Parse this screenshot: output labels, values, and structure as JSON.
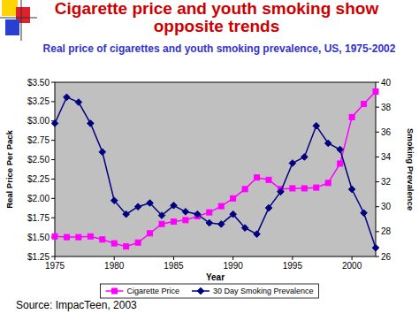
{
  "chart_data": {
    "type": "line",
    "title": "Cigarette price and youth smoking show opposite trends",
    "subtitle": "Real price of cigarettes and youth smoking prevalence, US, 1975-2002",
    "x_label": "Year",
    "y_label": "Real Price Per Pack",
    "y2_label": "Smoking Prevalence",
    "source": "Source: ImpacTeen, 2003",
    "x": [
      1975,
      1976,
      1977,
      1978,
      1979,
      1980,
      1981,
      1982,
      1983,
      1984,
      1985,
      1986,
      1987,
      1988,
      1989,
      1990,
      1991,
      1992,
      1993,
      1994,
      1995,
      1996,
      1997,
      1998,
      1999,
      2000,
      2001,
      2002
    ],
    "xlim": [
      1975,
      2002
    ],
    "xticks": [
      1975,
      1980,
      1985,
      1990,
      1995,
      2000
    ],
    "ylim": [
      1.25,
      3.5
    ],
    "yticks": [
      {
        "value": 1.25,
        "label": "$1.25"
      },
      {
        "value": 1.5,
        "label": "$1.50"
      },
      {
        "value": 1.75,
        "label": "$1.75"
      },
      {
        "value": 2,
        "label": "$2.00"
      },
      {
        "value": 2.25,
        "label": "$2.25"
      },
      {
        "value": 2.5,
        "label": "$2.50"
      },
      {
        "value": 2.75,
        "label": "$2.75"
      },
      {
        "value": 3,
        "label": "$3.00"
      },
      {
        "value": 3.25,
        "label": "$3.25"
      },
      {
        "value": 3.5,
        "label": "$3.50"
      }
    ],
    "y2lim": [
      26,
      40
    ],
    "y2ticks": [
      26,
      28,
      30,
      32,
      34,
      36,
      38,
      40
    ],
    "grid": false,
    "legend": "bottom",
    "series": [
      {
        "name": "Cigarette Price",
        "color": "#ff00ff",
        "marker": "square",
        "values": [
          1.51,
          1.5,
          1.5,
          1.51,
          1.47,
          1.42,
          1.38,
          1.43,
          1.55,
          1.67,
          1.7,
          1.72,
          1.77,
          1.82,
          1.9,
          2.0,
          2.12,
          2.27,
          2.24,
          2.12,
          2.13,
          2.13,
          2.14,
          2.2,
          2.45,
          3.05,
          3.22,
          3.38
        ]
      },
      {
        "name": "30 Day Smoking Prevalence",
        "color": "#000080",
        "marker": "diamond",
        "axis": "y2",
        "values": [
          36.7,
          38.8,
          38.4,
          36.7,
          34.4,
          30.5,
          29.4,
          30.0,
          30.3,
          29.3,
          30.1,
          29.6,
          29.4,
          28.7,
          28.6,
          29.4,
          28.3,
          27.8,
          29.9,
          31.2,
          33.5,
          34.0,
          36.5,
          35.1,
          34.6,
          31.4,
          29.5,
          26.7
        ]
      }
    ]
  }
}
